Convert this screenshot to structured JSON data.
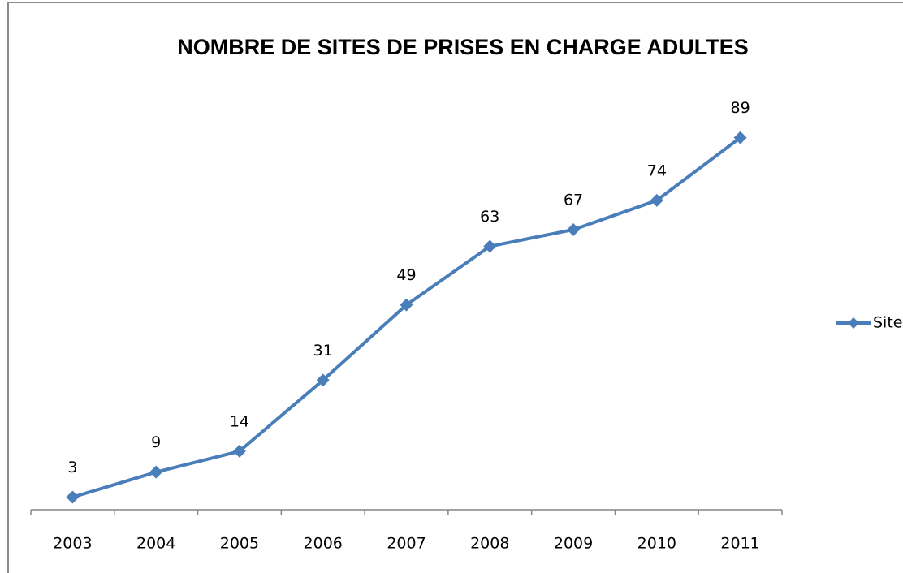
{
  "chart_data": {
    "type": "line",
    "title": "NOMBRE DE SITES DE PRISES EN CHARGE ADULTES",
    "categories": [
      "2003",
      "2004",
      "2005",
      "2006",
      "2007",
      "2008",
      "2009",
      "2010",
      "2011"
    ],
    "series": [
      {
        "name": "Site",
        "color": "#4a7ebb",
        "values": [
          3,
          9,
          14,
          31,
          49,
          63,
          67,
          74,
          89
        ]
      }
    ],
    "ylim": [
      0,
      100
    ],
    "legend": "right"
  }
}
